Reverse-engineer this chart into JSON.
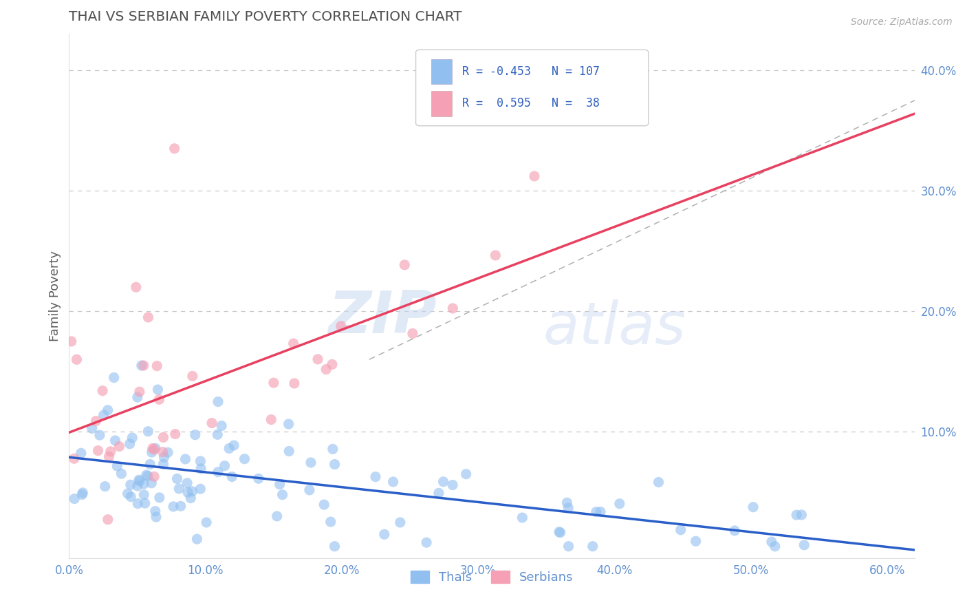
{
  "title": "THAI VS SERBIAN FAMILY POVERTY CORRELATION CHART",
  "source": "Source: ZipAtlas.com",
  "ylabel": "Family Poverty",
  "xlim": [
    0.0,
    0.62
  ],
  "ylim": [
    -0.005,
    0.43
  ],
  "xticks": [
    0.0,
    0.1,
    0.2,
    0.3,
    0.4,
    0.5,
    0.6
  ],
  "xticklabels": [
    "0.0%",
    "10.0%",
    "20.0%",
    "30.0%",
    "40.0%",
    "50.0%",
    "60.0%"
  ],
  "yticks": [
    0.1,
    0.2,
    0.3,
    0.4
  ],
  "yticklabels": [
    "10.0%",
    "20.0%",
    "30.0%",
    "40.0%"
  ],
  "thai_color": "#90bff0",
  "serbian_color": "#f5a0b5",
  "thai_R": -0.453,
  "thai_N": 107,
  "serbian_R": 0.595,
  "serbian_N": 38,
  "thai_line_color": "#2a5fc9",
  "serbian_line_color": "#e84060",
  "dashed_line_color": "#b0b0b0",
  "watermark_zip": "ZIP",
  "watermark_atlas": "atlas",
  "background_color": "#ffffff",
  "grid_color": "#c8c8c8",
  "title_color": "#505050",
  "axis_label_color": "#606060",
  "tick_color": "#6090d0",
  "legend_text_color": "#3060c0"
}
